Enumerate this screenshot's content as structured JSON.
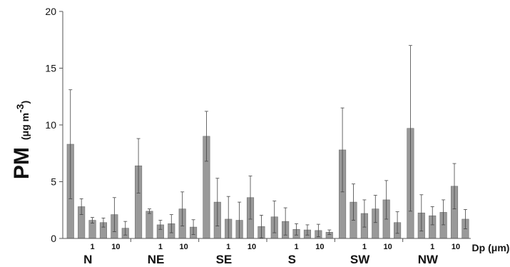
{
  "chart_data": {
    "type": "bar",
    "ylabel": {
      "main": "PM",
      "unit_prefix": "(μg m",
      "unit_exp": "-3",
      "unit_suffix": ")"
    },
    "xlabel": "Dp (μm)",
    "ylim": [
      0,
      20
    ],
    "yticks": [
      "0",
      "5",
      "10",
      "15",
      "20"
    ],
    "bar_color": "#999999",
    "dp_tick_labels": [
      {
        "bar_index": 2,
        "label": "1"
      },
      {
        "bar_index": 4,
        "label": "10"
      }
    ],
    "groups": [
      {
        "name": "N",
        "values": [
          8.3,
          2.8,
          1.6,
          1.4,
          2.1,
          0.9
        ],
        "errors": [
          4.8,
          0.7,
          0.25,
          0.4,
          1.5,
          0.6
        ]
      },
      {
        "name": "NE",
        "values": [
          6.4,
          2.4,
          1.2,
          1.3,
          2.6,
          1.0
        ],
        "errors": [
          2.4,
          0.2,
          0.4,
          0.8,
          1.5,
          0.65
        ]
      },
      {
        "name": "SE",
        "values": [
          9.0,
          3.2,
          1.7,
          1.6,
          3.6,
          1.05
        ],
        "errors": [
          2.2,
          2.1,
          2.0,
          1.6,
          1.9,
          1.0
        ]
      },
      {
        "name": "S",
        "values": [
          1.9,
          1.5,
          0.8,
          0.75,
          0.7,
          0.55
        ],
        "errors": [
          1.4,
          1.2,
          0.5,
          0.45,
          0.55,
          0.2
        ]
      },
      {
        "name": "SW",
        "values": [
          7.8,
          3.2,
          2.2,
          2.6,
          3.4,
          1.4
        ],
        "errors": [
          3.7,
          1.6,
          1.2,
          1.2,
          1.7,
          0.95
        ]
      },
      {
        "name": "NW",
        "values": [
          9.7,
          2.25,
          2.0,
          2.3,
          4.6,
          1.7
        ],
        "errors": [
          7.3,
          1.6,
          0.8,
          1.1,
          2.0,
          0.85
        ]
      }
    ]
  }
}
